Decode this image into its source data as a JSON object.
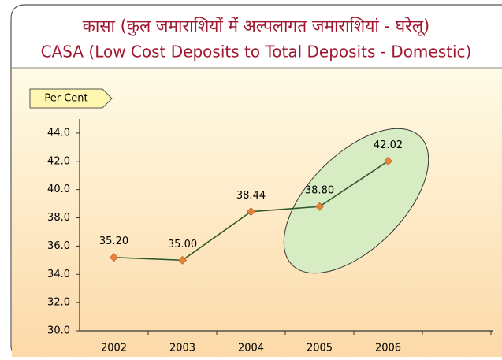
{
  "chart_data": {
    "type": "line",
    "title": "कासा (कुल जमाराशियों में अल्पलागत जमाराशियां - घरेलू)",
    "subtitle": "CASA (Low Cost Deposits to Total Deposits - Domestic)",
    "y_label": "Per Cent",
    "categories": [
      "2002",
      "2003",
      "2004",
      "2005",
      "2006"
    ],
    "values": [
      35.2,
      35.0,
      38.44,
      38.8,
      42.02
    ],
    "value_labels": [
      "35.20",
      "35.00",
      "38.44",
      "38.80",
      "42.02"
    ],
    "color": "#2f5a2a",
    "marker_color": "#e8823a",
    "ylim": [
      30,
      45
    ],
    "yticks": [
      {
        "value": 30,
        "label": "30.0"
      },
      {
        "value": 32,
        "label": "32.0"
      },
      {
        "value": 34,
        "label": "34.0"
      },
      {
        "value": 36,
        "label": "36.0"
      },
      {
        "value": 38,
        "label": "38.0"
      },
      {
        "value": 40,
        "label": "40.0"
      },
      {
        "value": 42,
        "label": "42.0"
      },
      {
        "value": 44,
        "label": "44.0"
      }
    ]
  }
}
